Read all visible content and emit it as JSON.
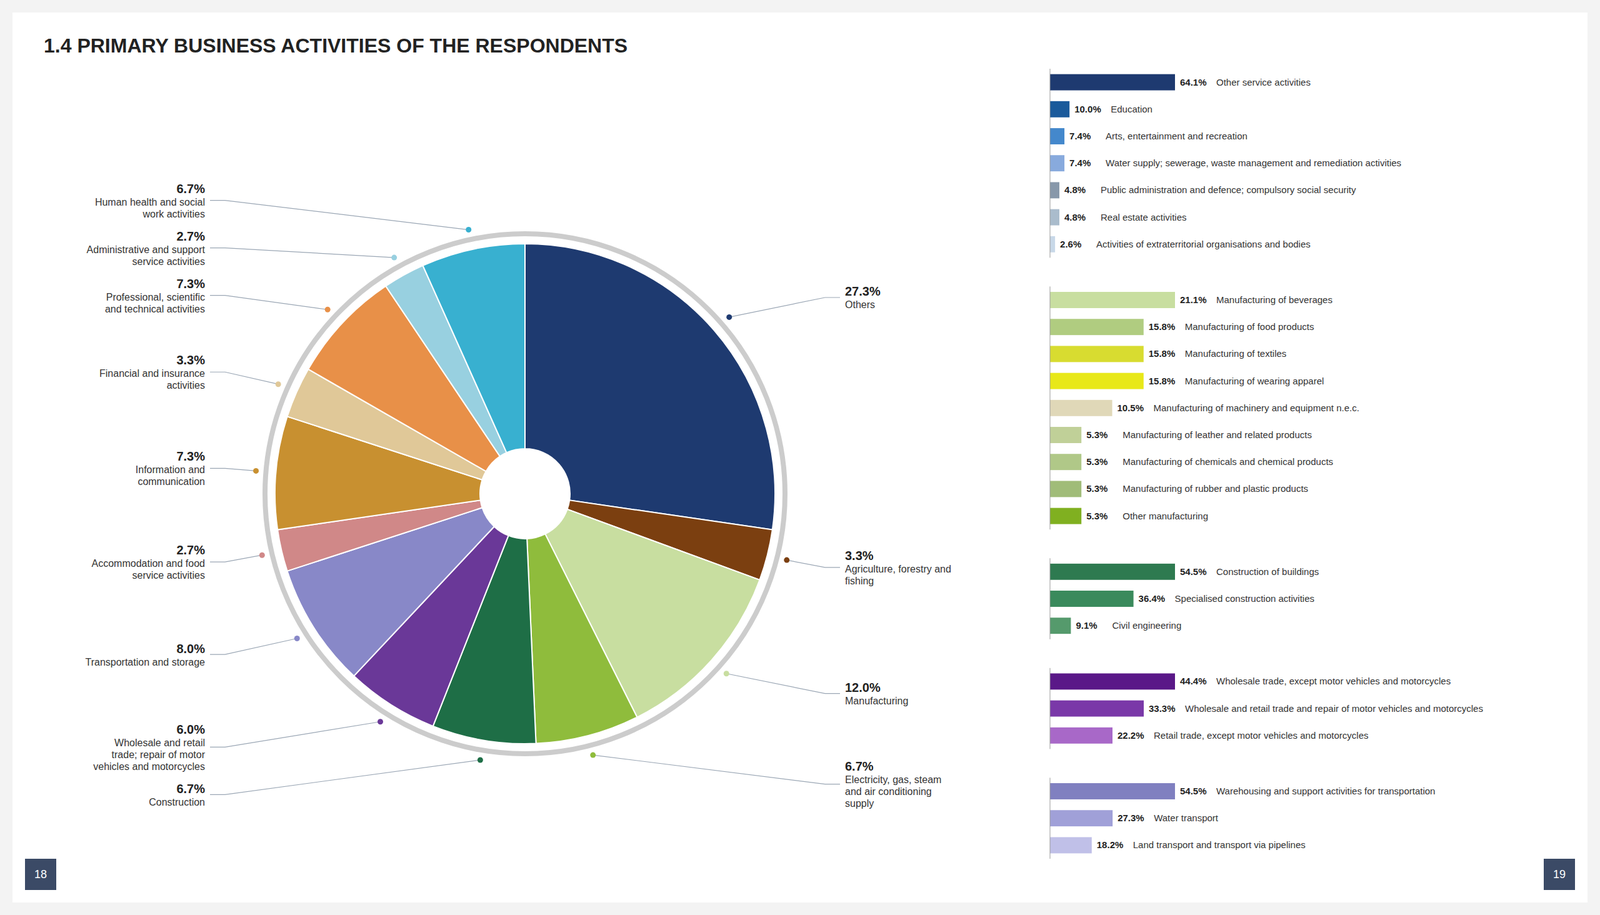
{
  "chart_data": [
    {
      "type": "pie",
      "title": "1.4 PRIMARY BUSINESS ACTIVITIES OF THE RESPONDENTS",
      "categories": [
        "Others",
        "Agriculture, forestry and fishing",
        "Manufacturing",
        "Electricity, gas, steam and air conditioning supply",
        "Construction",
        "Wholesale and retail trade; repair of motor vehicles and motorcycles",
        "Transportation and storage",
        "Accommodation and food service activities",
        "Information and communication",
        "Financial and insurance activities",
        "Professional, scientific and technical activities",
        "Administrative and support service activities",
        "Human health and social work activities"
      ],
      "values": [
        27.3,
        3.3,
        12.0,
        6.7,
        6.7,
        6.0,
        8.0,
        2.7,
        7.3,
        3.3,
        7.3,
        2.7,
        6.7
      ],
      "value_labels": [
        "27.3%",
        "3.3%",
        "12.0%",
        "6.7%",
        "6.7%",
        "6.0%",
        "8.0%",
        "2.7%",
        "7.3%",
        "3.3%",
        "7.3%",
        "2.7%",
        "6.7%"
      ],
      "colors": [
        "#1e3a70",
        "#7b3f10",
        "#c8dea0",
        "#8fbc3c",
        "#1e6e46",
        "#6a3898",
        "#8888c8",
        "#d08888",
        "#c89030",
        "#e0c898",
        "#e89048",
        "#98d0e0",
        "#38b0d0"
      ],
      "data_labels": true,
      "annotations": [
        "18",
        "19"
      ]
    },
    {
      "type": "bar",
      "orientation": "horizontal",
      "categories": [
        "Other service activities",
        "Education",
        "Arts, entertainment and recreation",
        "Water supply; sewerage, waste management and remediation activities",
        "Public administration and defence; compulsory social security",
        "Real estate activities",
        "Activities of extraterritorial organisations and bodies"
      ],
      "values": [
        64.1,
        10.0,
        7.4,
        7.4,
        4.8,
        4.8,
        2.6
      ],
      "value_labels": [
        "64.1%",
        "10.0%",
        "7.4%",
        "7.4%",
        "4.8%",
        "4.8%",
        "2.6%"
      ],
      "colors": [
        "#1e3a70",
        "#1a5a9b",
        "#4488cc",
        "#88aadd",
        "#8898aa",
        "#aabccc",
        "#c8d8e8"
      ],
      "data_labels": true,
      "tick_labels": false,
      "xlim": [
        0,
        64.1
      ]
    },
    {
      "type": "bar",
      "orientation": "horizontal",
      "categories": [
        "Manufacturing of beverages",
        "Manufacturing of food products",
        "Manufacturing of textiles",
        "Manufacturing of wearing apparel",
        "Manufacturing of machinery and equipment n.e.c.",
        "Manufacturing of leather and related products",
        "Manufacturing of chemicals and chemical products",
        "Manufacturing of rubber and plastic products",
        "Other manufacturing"
      ],
      "values": [
        21.1,
        15.8,
        15.8,
        15.8,
        10.5,
        5.3,
        5.3,
        5.3,
        5.3
      ],
      "value_labels": [
        "21.1%",
        "15.8%",
        "15.8%",
        "15.8%",
        "10.5%",
        "5.3%",
        "5.3%",
        "5.3%",
        "5.3%"
      ],
      "colors": [
        "#c8dea0",
        "#b0cc80",
        "#d8dc30",
        "#e8e818",
        "#e0d8b8",
        "#c0d098",
        "#b0c888",
        "#a0bc78",
        "#80b020"
      ],
      "data_labels": true,
      "tick_labels": false,
      "xlim": [
        0,
        21.1
      ]
    },
    {
      "type": "bar",
      "orientation": "horizontal",
      "categories": [
        "Construction of buildings",
        "Specialised construction activities",
        "Civil engineering"
      ],
      "values": [
        54.5,
        36.4,
        9.1
      ],
      "value_labels": [
        "54.5%",
        "36.4%",
        "9.1%"
      ],
      "colors": [
        "#2e7a50",
        "#3a8a5c",
        "#559a6c"
      ],
      "data_labels": true,
      "tick_labels": false,
      "xlim": [
        0,
        54.5
      ]
    },
    {
      "type": "bar",
      "orientation": "horizontal",
      "categories": [
        "Wholesale trade, except motor vehicles and motorcycles",
        "Wholesale and retail trade and repair of motor vehicles and motorcycles",
        "Retail trade, except motor vehicles and motorcycles"
      ],
      "values": [
        44.4,
        33.3,
        22.2
      ],
      "value_labels": [
        "44.4%",
        "33.3%",
        "22.2%"
      ],
      "colors": [
        "#5a1888",
        "#7a38a8",
        "#a868c8"
      ],
      "data_labels": true,
      "tick_labels": false,
      "xlim": [
        0,
        44.4
      ]
    },
    {
      "type": "bar",
      "orientation": "horizontal",
      "categories": [
        "Warehousing and support activities for transportation",
        "Water transport",
        "Land transport and transport via pipelines"
      ],
      "values": [
        54.5,
        27.3,
        18.2
      ],
      "value_labels": [
        "54.5%",
        "27.3%",
        "18.2%"
      ],
      "colors": [
        "#8080c0",
        "#a0a0d8",
        "#c0c0e8"
      ],
      "data_labels": true,
      "tick_labels": false,
      "xlim": [
        0,
        54.5
      ]
    }
  ]
}
